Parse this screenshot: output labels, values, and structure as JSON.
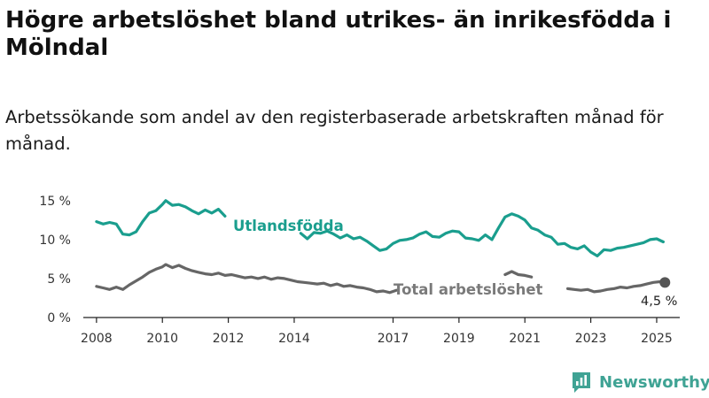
{
  "header": {
    "title": "Högre arbetslöshet bland utrikes- än inrikesfödda i Mölndal",
    "subtitle": "Arbetssökande som andel av den registerbaserade arbetskraften månad för månad."
  },
  "brand": {
    "name": "Newsworthy",
    "icon": "bar-chart-logo-icon",
    "color": "#3fa394"
  },
  "chart_data": {
    "type": "line",
    "y_ticks": [
      "15 %",
      "10 %",
      "5 %",
      "0 %"
    ],
    "y_tick_values": [
      15,
      10,
      5,
      0
    ],
    "x_ticks": [
      "2008",
      "2010",
      "2012",
      "2014",
      "2017",
      "2019",
      "2021",
      "2023",
      "2025"
    ],
    "x_tick_values": [
      2008.0,
      2010.0,
      2012.0,
      2014.0,
      2017.0,
      2019.0,
      2021.0,
      2023.0,
      2025.0
    ],
    "ylim": [
      0,
      16
    ],
    "xlim": [
      2007.6,
      2025.7
    ],
    "grid": false,
    "series": [
      {
        "name": "Utlandsfödda",
        "color": "#1a9e8e",
        "points": [
          [
            2008.0,
            12.3
          ],
          [
            2008.2,
            12.0
          ],
          [
            2008.4,
            12.2
          ],
          [
            2008.6,
            12.0
          ],
          [
            2008.8,
            10.7
          ],
          [
            2009.0,
            10.6
          ],
          [
            2009.2,
            11.0
          ],
          [
            2009.4,
            12.3
          ],
          [
            2009.6,
            13.4
          ],
          [
            2009.8,
            13.7
          ],
          [
            2010.0,
            14.5
          ],
          [
            2010.1,
            15.0
          ],
          [
            2010.3,
            14.4
          ],
          [
            2010.5,
            14.5
          ],
          [
            2010.7,
            14.2
          ],
          [
            2010.9,
            13.7
          ],
          [
            2011.1,
            13.3
          ],
          [
            2011.3,
            13.8
          ],
          [
            2011.5,
            13.4
          ],
          [
            2011.7,
            13.9
          ],
          [
            2011.9,
            13.0
          ],
          null,
          [
            2014.2,
            10.8
          ],
          [
            2014.4,
            10.1
          ],
          [
            2014.6,
            10.9
          ],
          [
            2014.8,
            10.8
          ],
          [
            2015.0,
            11.1
          ],
          [
            2015.2,
            10.7
          ],
          [
            2015.4,
            10.2
          ],
          [
            2015.6,
            10.6
          ],
          [
            2015.8,
            10.1
          ],
          [
            2016.0,
            10.3
          ],
          [
            2016.2,
            9.8
          ],
          [
            2016.4,
            9.2
          ],
          [
            2016.6,
            8.6
          ],
          [
            2016.8,
            8.8
          ],
          [
            2017.0,
            9.5
          ],
          [
            2017.2,
            9.9
          ],
          [
            2017.4,
            10.0
          ],
          [
            2017.6,
            10.2
          ],
          [
            2017.8,
            10.7
          ],
          [
            2018.0,
            11.0
          ],
          [
            2018.2,
            10.4
          ],
          [
            2018.4,
            10.3
          ],
          [
            2018.6,
            10.8
          ],
          [
            2018.8,
            11.1
          ],
          [
            2019.0,
            11.0
          ],
          [
            2019.2,
            10.2
          ],
          [
            2019.4,
            10.1
          ],
          [
            2019.6,
            9.9
          ],
          [
            2019.8,
            10.6
          ],
          [
            2020.0,
            10.0
          ],
          [
            2020.2,
            11.5
          ],
          [
            2020.4,
            12.9
          ],
          [
            2020.6,
            13.3
          ],
          [
            2020.8,
            13.0
          ],
          [
            2021.0,
            12.5
          ],
          [
            2021.2,
            11.5
          ],
          [
            2021.4,
            11.2
          ],
          [
            2021.6,
            10.6
          ],
          [
            2021.8,
            10.3
          ],
          [
            2022.0,
            9.4
          ],
          [
            2022.2,
            9.5
          ],
          [
            2022.4,
            9.0
          ],
          [
            2022.6,
            8.8
          ],
          [
            2022.8,
            9.2
          ],
          [
            2023.0,
            8.4
          ],
          [
            2023.2,
            7.9
          ],
          [
            2023.4,
            8.7
          ],
          [
            2023.6,
            8.6
          ],
          [
            2023.8,
            8.9
          ],
          [
            2024.0,
            9.0
          ],
          [
            2024.2,
            9.2
          ],
          [
            2024.4,
            9.4
          ],
          [
            2024.6,
            9.6
          ],
          [
            2024.8,
            10.0
          ],
          [
            2025.0,
            10.1
          ],
          [
            2025.2,
            9.7
          ]
        ]
      },
      {
        "name": "Total arbetslöshet",
        "color": "#666666",
        "points": [
          [
            2008.0,
            4.0
          ],
          [
            2008.2,
            3.8
          ],
          [
            2008.4,
            3.6
          ],
          [
            2008.6,
            3.9
          ],
          [
            2008.8,
            3.6
          ],
          [
            2009.0,
            4.2
          ],
          [
            2009.2,
            4.7
          ],
          [
            2009.4,
            5.2
          ],
          [
            2009.6,
            5.8
          ],
          [
            2009.8,
            6.2
          ],
          [
            2010.0,
            6.5
          ],
          [
            2010.1,
            6.8
          ],
          [
            2010.3,
            6.4
          ],
          [
            2010.5,
            6.7
          ],
          [
            2010.7,
            6.3
          ],
          [
            2010.9,
            6.0
          ],
          [
            2011.1,
            5.8
          ],
          [
            2011.3,
            5.6
          ],
          [
            2011.5,
            5.5
          ],
          [
            2011.7,
            5.7
          ],
          [
            2011.9,
            5.4
          ],
          [
            2012.1,
            5.5
          ],
          [
            2012.3,
            5.3
          ],
          [
            2012.5,
            5.1
          ],
          [
            2012.7,
            5.2
          ],
          [
            2012.9,
            5.0
          ],
          [
            2013.1,
            5.2
          ],
          [
            2013.3,
            4.9
          ],
          [
            2013.5,
            5.1
          ],
          [
            2013.7,
            5.0
          ],
          [
            2013.9,
            4.8
          ],
          [
            2014.1,
            4.6
          ],
          [
            2014.3,
            4.5
          ],
          [
            2014.5,
            4.4
          ],
          [
            2014.7,
            4.3
          ],
          [
            2014.9,
            4.4
          ],
          [
            2015.1,
            4.1
          ],
          [
            2015.3,
            4.3
          ],
          [
            2015.5,
            4.0
          ],
          [
            2015.7,
            4.1
          ],
          [
            2015.9,
            3.9
          ],
          [
            2016.1,
            3.8
          ],
          [
            2016.3,
            3.6
          ],
          [
            2016.5,
            3.3
          ],
          [
            2016.7,
            3.4
          ],
          [
            2016.9,
            3.2
          ],
          [
            2017.1,
            3.5
          ],
          null,
          [
            2020.4,
            5.5
          ],
          [
            2020.6,
            5.9
          ],
          [
            2020.8,
            5.5
          ],
          [
            2021.0,
            5.4
          ],
          [
            2021.2,
            5.2
          ],
          null,
          [
            2022.3,
            3.7
          ],
          [
            2022.5,
            3.6
          ],
          [
            2022.7,
            3.5
          ],
          [
            2022.9,
            3.6
          ],
          [
            2023.1,
            3.3
          ],
          [
            2023.3,
            3.4
          ],
          [
            2023.5,
            3.6
          ],
          [
            2023.7,
            3.7
          ],
          [
            2023.9,
            3.9
          ],
          [
            2024.1,
            3.8
          ],
          [
            2024.3,
            4.0
          ],
          [
            2024.5,
            4.1
          ],
          [
            2024.7,
            4.3
          ],
          [
            2024.9,
            4.5
          ],
          [
            2025.1,
            4.6
          ],
          [
            2025.25,
            4.5
          ]
        ]
      }
    ],
    "labels": {
      "foreign": "Utlandsfödda",
      "total": "Total arbetslöshet",
      "last_value": "4,5 %"
    },
    "last_point": {
      "x": 2025.25,
      "y": 4.5
    }
  }
}
